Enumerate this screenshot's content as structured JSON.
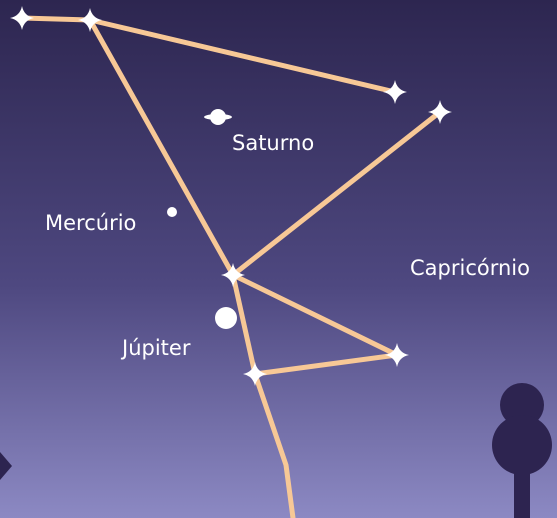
{
  "planets": [
    {
      "label": "Saturno"
    },
    {
      "label": "Mercúrio"
    },
    {
      "label": "Júpiter"
    }
  ],
  "constellation": {
    "label": "Capricórnio"
  }
}
